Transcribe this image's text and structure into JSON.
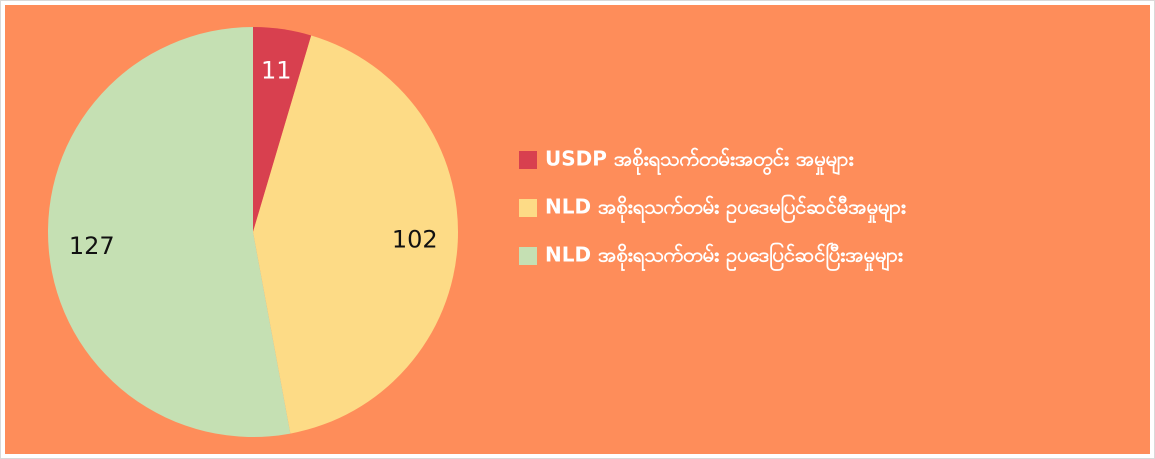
{
  "chart_data": {
    "type": "pie",
    "categories": [
      "USDP အစိုးရသက်တမ်းအတွင်း အမှုများ",
      "NLD အစိုးရသက်တမ်း ဥပဒေမပြင်ဆင်မီအမှုများ",
      "NLD အစိုးရသက်တမ်း ဥပဒေပြင်ဆင်ပြီးအမှုများ"
    ],
    "values": [
      11,
      102,
      127
    ],
    "colors": [
      "#d8404f",
      "#fddb86",
      "#c5e0b3"
    ],
    "legend": "right"
  }
}
